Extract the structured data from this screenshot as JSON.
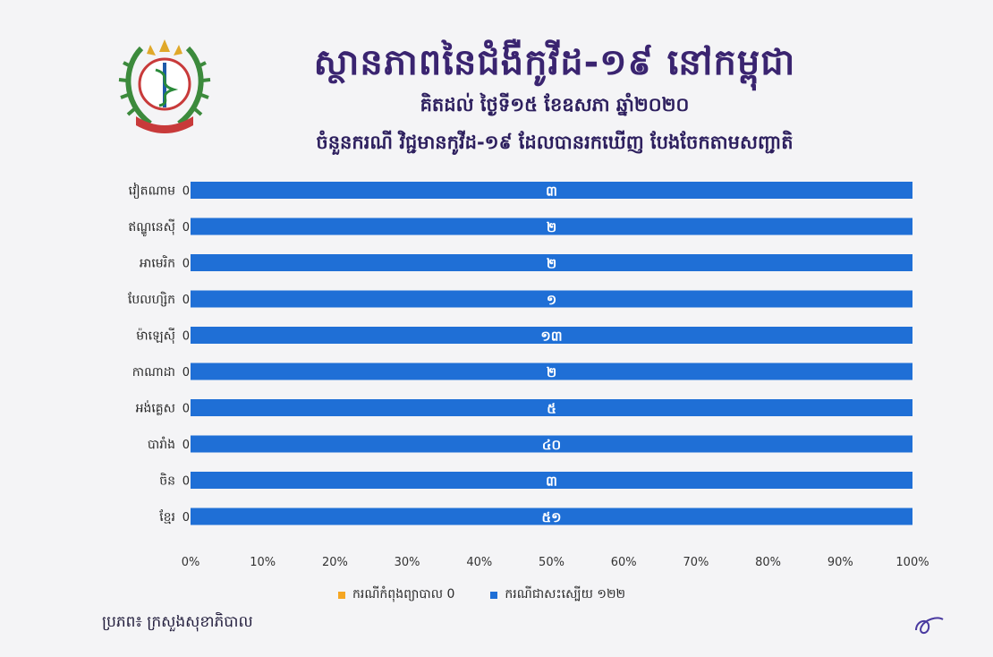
{
  "header": {
    "title": "ស្ថានភាពនៃជំងឺកូវីដ-១៩ នៅកម្ពុជា",
    "subtitle": "គិតដល់ ថ្ងៃទី១៥ ខែឧសភា ឆ្នាំ២០២០",
    "subtitle2": "ចំនួនករណី វិជ្ជមានកូវីដ-១៩ ដែលបានរកឃើញ បែងចែកតាមសញ្ជាតិ"
  },
  "legend": {
    "treating_label": "ករណីកំពុងព្យាបាល 0",
    "recovered_label": "ករណីជាសះស្បើយ ១២២"
  },
  "source": "ប្រភព៖ ក្រសួងសុខាភិបាល",
  "colors": {
    "treating": "#f5a623",
    "recovered": "#1f6fd6",
    "title": "#3a2470"
  },
  "chart_data": {
    "type": "bar",
    "orientation": "horizontal",
    "stacked": "percent",
    "categories": [
      "វៀតណាម",
      "ឥណ្ឌូនេស៊ី",
      "អាមេរិក",
      "បែលហ្សិក",
      "ម៉ាឡេស៊ី",
      "កាណាដា",
      "អង់គ្លេស",
      "បារាំង",
      "ចិន",
      "ខ្មែរ"
    ],
    "series": [
      {
        "name": "ករណីកំពុងព្យាបាល",
        "values": [
          0,
          0,
          0,
          0,
          0,
          0,
          0,
          0,
          0,
          0
        ],
        "labels": [
          "0",
          "0",
          "0",
          "0",
          "0",
          "0",
          "0",
          "0",
          "0",
          "0"
        ]
      },
      {
        "name": "ករណីជាសះស្បើយ",
        "values": [
          3,
          2,
          2,
          1,
          13,
          2,
          5,
          40,
          3,
          51
        ],
        "labels": [
          "៣",
          "២",
          "២",
          "១",
          "១៣",
          "២",
          "៥",
          "៤០",
          "៣",
          "៥១"
        ]
      }
    ],
    "xticks": [
      "0%",
      "10%",
      "20%",
      "30%",
      "40%",
      "50%",
      "60%",
      "70%",
      "80%",
      "90%",
      "100%"
    ],
    "xlim": [
      0,
      100
    ],
    "legend_position": "bottom",
    "grid": false
  }
}
